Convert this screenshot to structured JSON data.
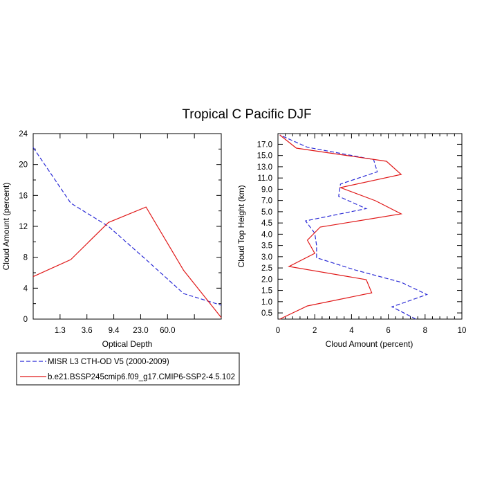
{
  "title": "Tropical C Pacific DJF",
  "colors": {
    "misr": "#2b2bd6",
    "model": "#e01818"
  },
  "chart_data": [
    {
      "type": "line",
      "xlabel": "Optical Depth",
      "ylabel": "Cloud Amount (percent)",
      "ylim": [
        0,
        24
      ],
      "yticks": [
        "0",
        "4",
        "8",
        "12",
        "16",
        "20",
        "24"
      ],
      "xticks": [
        "1.3",
        "3.6",
        "9.4",
        "23.0",
        "60.0"
      ],
      "x_bins": 7,
      "series": [
        {
          "name": "MISR L3 CTH-OD V5 (2000-2009)",
          "color_key": "misr",
          "dashed": true,
          "values": [
            22.2,
            15.0,
            12.0,
            7.7,
            3.3,
            1.8
          ]
        },
        {
          "name": "b.e21.BSSP245cmip6.f09_g17.CMIP6-SSP2-4.5.102",
          "color_key": "model",
          "dashed": false,
          "values": [
            5.5,
            7.7,
            12.5,
            14.5,
            6.3,
            0.2
          ]
        }
      ]
    },
    {
      "type": "line",
      "xlabel": "Cloud Amount (percent)",
      "ylabel": "Cloud Top Height (km)",
      "xlim": [
        0,
        10
      ],
      "xticks": [
        "0",
        "2",
        "4",
        "6",
        "8",
        "10"
      ],
      "yticks": [
        "0.5",
        "1.0",
        "1.5",
        "2.0",
        "2.5",
        "3.0",
        "3.5",
        "4.0",
        "4.5",
        "5.0",
        "7.0",
        "9.0",
        "11.0",
        "13.0",
        "15.0",
        "17.0"
      ],
      "series": [
        {
          "name": "MISR L3 CTH-OD V5 (2000-2009)",
          "color_key": "misr",
          "dashed": true,
          "values": [
            7.5,
            6.2,
            8.1,
            6.7,
            4.2,
            2.1,
            2.1,
            2.0,
            1.5,
            4.8,
            3.3,
            3.4,
            5.4,
            5.2,
            1.6,
            0.1
          ]
        },
        {
          "name": "b.e21.BSSP245cmip6.f09_g17.CMIP6-SSP2-4.5.102",
          "color_key": "model",
          "dashed": false,
          "values": [
            0.1,
            1.6,
            5.1,
            4.8,
            0.6,
            2.0,
            1.6,
            2.3,
            6.7,
            5.3,
            3.4,
            6.7,
            5.9,
            1.0,
            0.1
          ]
        }
      ]
    }
  ],
  "legend": {
    "items": [
      {
        "label": "MISR L3 CTH-OD V5 (2000-2009)",
        "color_key": "misr",
        "dashed": true
      },
      {
        "label": "b.e21.BSSP245cmip6.f09_g17.CMIP6-SSP2-4.5.102",
        "color_key": "model",
        "dashed": false
      }
    ]
  }
}
